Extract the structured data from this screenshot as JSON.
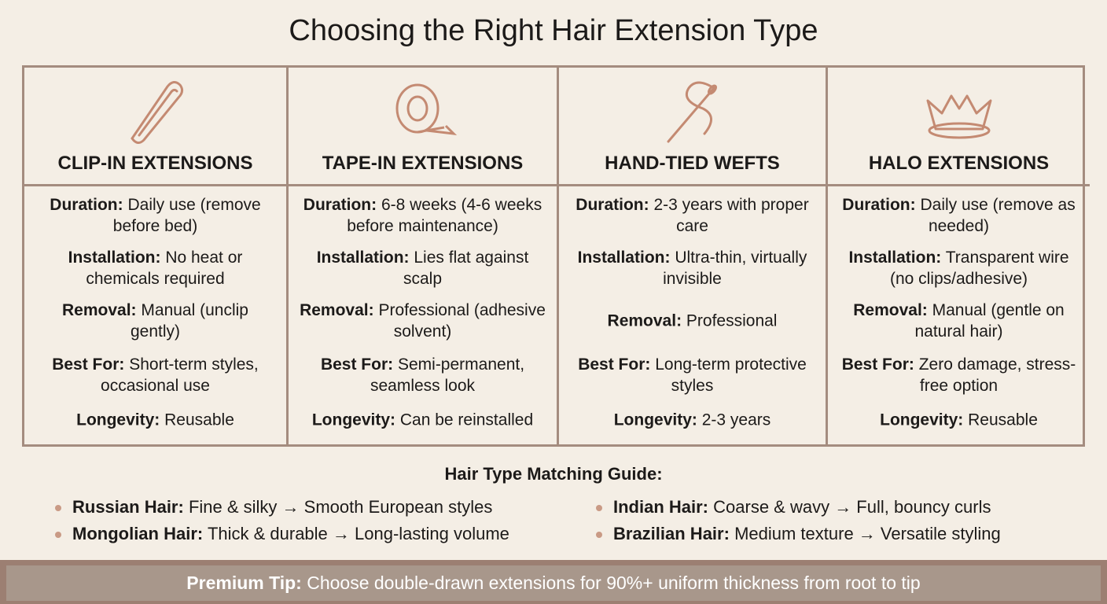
{
  "title": "Choosing the Right Hair Extension Type",
  "columns": [
    {
      "heading": "CLIP-IN EXTENSIONS",
      "rows": [
        {
          "label": "Duration:",
          "text": "Daily use (remove before bed)"
        },
        {
          "label": "Installation:",
          "text": "No heat or chemicals required"
        },
        {
          "label": "Removal:",
          "text": "Manual (unclip gently)"
        },
        {
          "label": "Best For:",
          "text": "Short-term styles, occasional use"
        },
        {
          "label": "Longevity:",
          "text": "Reusable"
        }
      ]
    },
    {
      "heading": "TAPE-IN EXTENSIONS",
      "rows": [
        {
          "label": "Duration:",
          "text": "6-8 weeks (4-6 weeks before maintenance)"
        },
        {
          "label": "Installation:",
          "text": "Lies flat against scalp"
        },
        {
          "label": "Removal:",
          "text": "Professional (adhesive solvent)"
        },
        {
          "label": "Best For:",
          "text": "Semi-permanent, seamless look"
        },
        {
          "label": "Longevity:",
          "text": "Can be reinstalled"
        }
      ]
    },
    {
      "heading": "HAND-TIED WEFTS",
      "rows": [
        {
          "label": "Duration:",
          "text": "2-3 years with proper care"
        },
        {
          "label": "Installation:",
          "text": "Ultra-thin, virtually invisible"
        },
        {
          "label": "Removal:",
          "text": "Professional"
        },
        {
          "label": "Best For:",
          "text": "Long-term protective styles"
        },
        {
          "label": "Longevity:",
          "text": "2-3 years"
        }
      ]
    },
    {
      "heading": "HALO EXTENSIONS",
      "rows": [
        {
          "label": "Duration:",
          "text": "Daily use (remove as needed)"
        },
        {
          "label": "Installation:",
          "text": "Transparent wire (no clips/adhesive)"
        },
        {
          "label": "Removal:",
          "text": "Manual (gentle on natural hair)"
        },
        {
          "label": "Best For:",
          "text": "Zero damage, stress-free option"
        },
        {
          "label": "Longevity:",
          "text": "Reusable"
        }
      ]
    }
  ],
  "guide": {
    "title": "Hair Type Matching Guide:",
    "items": [
      {
        "label": "Russian Hair:",
        "text": "Fine & silky → Smooth European styles"
      },
      {
        "label": "Indian Hair:",
        "text": "Coarse & wavy → Full, bouncy curls"
      },
      {
        "label": "Mongolian Hair:",
        "text": "Thick & durable → Long-lasting volume"
      },
      {
        "label": "Brazilian Hair:",
        "text": "Medium texture → Versatile styling"
      }
    ]
  },
  "tip": {
    "label": "Premium Tip:",
    "text": "Choose double-drawn extensions for 90%+ uniform thickness from root to tip"
  }
}
